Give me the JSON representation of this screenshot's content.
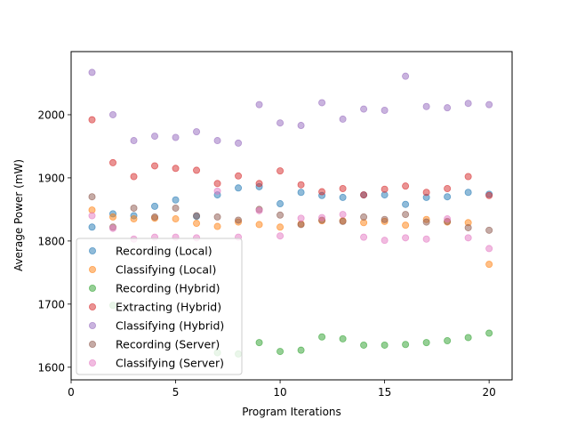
{
  "chart_data": {
    "type": "scatter",
    "title": "",
    "xlabel": "Program Iterations",
    "ylabel": "Average Power (mW)",
    "xlim": [
      0,
      21.1
    ],
    "ylim": [
      1580,
      2100
    ],
    "x_ticks": [
      0,
      5,
      10,
      15,
      20
    ],
    "y_ticks": [
      1600,
      1700,
      1800,
      1900,
      2000
    ],
    "grid": false,
    "legend_position": "lower-left",
    "x": [
      1,
      2,
      3,
      4,
      5,
      6,
      7,
      8,
      9,
      10,
      11,
      12,
      13,
      14,
      15,
      16,
      17,
      18,
      19,
      20
    ],
    "series": [
      {
        "name": "Recording (Local)",
        "color": "#1f77b4",
        "values": [
          1822,
          1843,
          1840,
          1855,
          1865,
          1839,
          1873,
          1884,
          1886,
          1859,
          1877,
          1872,
          1869,
          1873,
          1873,
          1858,
          1869,
          1870,
          1877,
          1874
        ]
      },
      {
        "name": "Classifying (Local)",
        "color": "#ff7f0e",
        "values": [
          1849,
          1838,
          1835,
          1836,
          1835,
          1828,
          1823,
          1830,
          1826,
          1822,
          1827,
          1832,
          1832,
          1829,
          1831,
          1825,
          1834,
          1830,
          1829,
          1763
        ]
      },
      {
        "name": "Recording (Hybrid)",
        "color": "#2ca02c",
        "values": [
          null,
          1698,
          null,
          null,
          null,
          null,
          1623,
          1621,
          1639,
          1625,
          1627,
          1648,
          1645,
          1635,
          1635,
          1636,
          1639,
          1642,
          1647,
          1654
        ]
      },
      {
        "name": "Extracting (Hybrid)",
        "color": "#d62728",
        "values": [
          1992,
          1924,
          1902,
          1919,
          1915,
          1912,
          1891,
          1903,
          1891,
          1911,
          1889,
          1878,
          1883,
          1873,
          1882,
          1887,
          1877,
          1883,
          1902,
          1872
        ]
      },
      {
        "name": "Classifying (Hybrid)",
        "color": "#9467bd",
        "values": [
          2067,
          2000,
          1959,
          1966,
          1964,
          1973,
          1959,
          1955,
          2016,
          1987,
          1983,
          2019,
          1993,
          2009,
          2007,
          2061,
          2013,
          2011,
          2018,
          2016
        ]
      },
      {
        "name": "Recording (Server)",
        "color": "#8c564b",
        "values": [
          1870,
          1822,
          1852,
          1838,
          1852,
          1840,
          1838,
          1833,
          1850,
          1841,
          1826,
          1833,
          1831,
          1838,
          1834,
          1842,
          1830,
          1831,
          1821,
          1817
        ]
      },
      {
        "name": "Classifying (Server)",
        "color": "#e377c2",
        "values": [
          1840,
          1820,
          1803,
          1806,
          1806,
          1805,
          1879,
          1806,
          1848,
          1808,
          1836,
          1837,
          1842,
          1806,
          1801,
          1805,
          1803,
          1835,
          1805,
          1788
        ]
      }
    ]
  }
}
